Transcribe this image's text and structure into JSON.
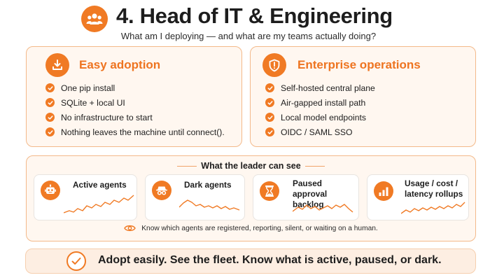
{
  "header": {
    "icon": "team-icon",
    "title": "4. Head of IT & Engineering",
    "subtitle": "What am I deploying — and what are my teams actually doing?"
  },
  "adoption": {
    "icon": "download-icon",
    "title": "Easy adoption",
    "items": [
      "One pip install",
      "SQLite + local UI",
      "No infrastructure to start",
      "Nothing leaves the machine until connect()."
    ]
  },
  "operations": {
    "icon": "shield-icon",
    "title": "Enterprise operations",
    "items": [
      "Self-hosted central plane",
      "Air-gapped install path",
      "Local model endpoints",
      "OIDC / SAML SSO"
    ]
  },
  "visibility": {
    "title": "What the leader can see",
    "cards": [
      {
        "icon": "robot-icon",
        "label_line1": "Active agents",
        "label_line2": ""
      },
      {
        "icon": "incognito-icon",
        "label_line1": "Dark agents",
        "label_line2": ""
      },
      {
        "icon": "hourglass-icon",
        "label_line1": "Paused approval",
        "label_line2": "backlog"
      },
      {
        "icon": "bar-chart-icon",
        "label_line1": "Usage / cost /",
        "label_line2": "latency rollups"
      }
    ],
    "note_icon": "eye-icon",
    "note": "Know which agents are registered, reporting, silent, or waiting on a human."
  },
  "footer": {
    "icon": "check-circle-icon",
    "text": "Adopt easily. See the fleet. Know what is active, paused, or dark."
  },
  "colors": {
    "accent": "#f07a24",
    "panel_bg": "#fff7f0",
    "panel_border": "#f3b98a"
  }
}
